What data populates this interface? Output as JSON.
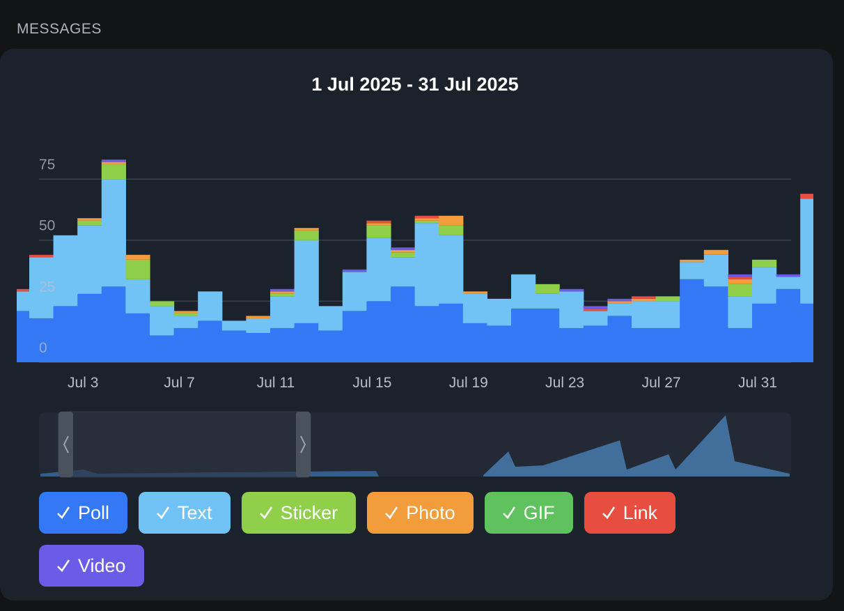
{
  "section_title": "MESSAGES",
  "chart_data": {
    "type": "stacked_bar",
    "title": "1 Jul 2025 - 31 Jul 2025",
    "categories": [
      null,
      null,
      null,
      "Jul 3",
      null,
      null,
      null,
      "Jul 7",
      null,
      null,
      null,
      "Jul 11",
      null,
      null,
      null,
      "Jul 15",
      null,
      null,
      null,
      "Jul 19",
      null,
      null,
      null,
      "Jul 23",
      null,
      null,
      null,
      "Jul 27",
      null,
      null,
      null,
      "Jul 31",
      null,
      null
    ],
    "series": [
      {
        "name": "Poll",
        "color": "#3478f6",
        "values": [
          21,
          18,
          23,
          28,
          31,
          20,
          11,
          14,
          17,
          13,
          12,
          14,
          16,
          13,
          21,
          25,
          31,
          23,
          24,
          16,
          15,
          22,
          22,
          14,
          15,
          19,
          14,
          14,
          34,
          31,
          14,
          24,
          30,
          24
        ]
      },
      {
        "name": "Text",
        "color": "#72c3f5",
        "values": [
          8,
          25,
          29,
          28,
          44,
          14,
          12,
          5,
          12,
          4,
          6,
          13,
          34,
          10,
          16,
          26,
          12,
          34,
          28,
          12,
          11,
          14,
          6,
          15,
          6,
          5,
          11,
          11,
          7,
          13,
          13,
          15,
          5,
          43
        ]
      },
      {
        "name": "Sticker",
        "color": "#8fcf4a",
        "values": [
          0,
          0,
          0,
          2,
          6,
          8,
          2,
          1,
          0,
          0,
          0,
          1,
          4,
          0,
          0,
          5,
          2,
          1,
          4,
          0,
          0,
          0,
          4,
          0,
          0,
          0,
          0,
          2,
          0,
          0,
          5,
          3,
          0,
          0
        ]
      },
      {
        "name": "Photo",
        "color": "#f39c3c",
        "values": [
          0,
          0,
          0,
          1,
          1,
          2,
          0,
          1,
          0,
          0,
          1,
          1,
          1,
          0,
          0,
          1,
          1,
          1,
          4,
          1,
          0,
          0,
          0,
          0,
          0,
          1,
          1,
          0,
          1,
          2,
          2,
          0,
          0,
          0
        ]
      },
      {
        "name": "GIF",
        "color": "#5fc25f",
        "values": [
          0,
          0,
          0,
          0,
          0,
          0,
          0,
          0,
          0,
          0,
          0,
          0,
          0,
          0,
          0,
          0,
          0,
          0,
          0,
          0,
          0,
          0,
          0,
          0,
          0,
          0,
          0,
          0,
          0,
          0,
          0,
          0,
          0,
          0
        ]
      },
      {
        "name": "Link",
        "color": "#e84e3f",
        "values": [
          1,
          1,
          0,
          0,
          0,
          0,
          0,
          0,
          0,
          0,
          0,
          0,
          0,
          0,
          0,
          1,
          0,
          1,
          0,
          0,
          0,
          0,
          0,
          0,
          1,
          0,
          1,
          0,
          0,
          0,
          1,
          0,
          0,
          2
        ]
      },
      {
        "name": "Video",
        "color": "#6b5ce7",
        "values": [
          0,
          0,
          0,
          0,
          1,
          0,
          0,
          0,
          0,
          0,
          0,
          1,
          0,
          0,
          1,
          0,
          1,
          0,
          0,
          0,
          0,
          0,
          0,
          1,
          1,
          1,
          0,
          0,
          0,
          0,
          1,
          0,
          1,
          0
        ]
      }
    ],
    "ylim": [
      0,
      95
    ],
    "yticks": [
      0,
      25,
      50,
      75
    ],
    "grid": true
  }
}
